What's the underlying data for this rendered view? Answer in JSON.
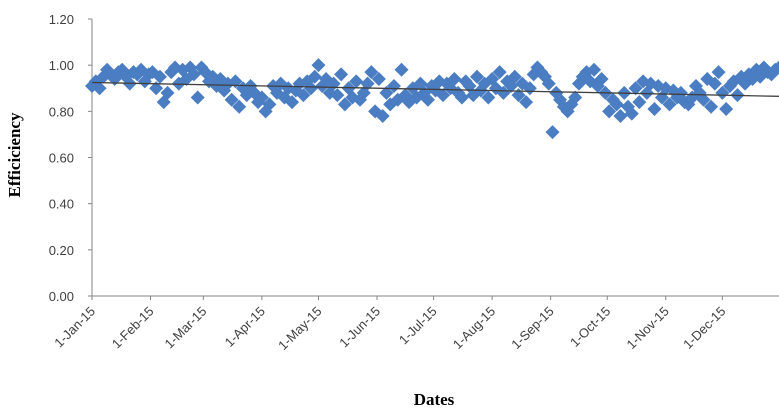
{
  "chart_data": {
    "type": "scatter",
    "title": "",
    "xlabel": "Dates",
    "ylabel": "Efficiciency",
    "x_ticks": [
      "1-Jan-15",
      "1-Feb-15",
      "1-Mar-15",
      "1-Apr-15",
      "1-May-15",
      "1-Jun-15",
      "1-Jul-15",
      "1-Aug-15",
      "1-Sep-15",
      "1-Oct-15",
      "1-Nov-15",
      "1-Dec-15"
    ],
    "y_ticks": [
      "0.00",
      "0.20",
      "0.40",
      "0.60",
      "0.80",
      "1.00",
      "1.20"
    ],
    "xlim": [
      "2015-01-01",
      "2015-12-31"
    ],
    "ylim": [
      0,
      1.2
    ],
    "grid": false,
    "legend": "none",
    "marker": "diamond",
    "marker_color": "#4a7dc2",
    "trendline": {
      "type": "linear",
      "color": "#404040",
      "start": [
        "2015-01-01",
        0.925
      ],
      "end": [
        "2015-12-31",
        0.865
      ]
    },
    "series": [
      {
        "x": [
          "2015-01-01",
          "2015-01-03",
          "2015-01-05",
          "2015-01-07",
          "2015-01-09",
          "2015-01-11",
          "2015-01-13",
          "2015-01-15",
          "2015-01-17",
          "2015-01-19",
          "2015-01-21",
          "2015-01-23",
          "2015-01-25",
          "2015-01-27",
          "2015-01-29",
          "2015-01-31",
          "2015-02-02",
          "2015-02-04",
          "2015-02-06",
          "2015-02-08",
          "2015-02-10",
          "2015-02-12",
          "2015-02-14",
          "2015-02-16",
          "2015-02-18",
          "2015-02-20",
          "2015-02-22",
          "2015-02-24",
          "2015-02-26",
          "2015-02-28",
          "2015-03-02",
          "2015-03-04",
          "2015-03-06",
          "2015-03-08",
          "2015-03-10",
          "2015-03-12",
          "2015-03-14",
          "2015-03-16",
          "2015-03-18",
          "2015-03-20",
          "2015-03-22",
          "2015-03-24",
          "2015-03-26",
          "2015-03-28",
          "2015-03-30",
          "2015-04-01",
          "2015-04-03",
          "2015-04-05",
          "2015-04-07",
          "2015-04-09",
          "2015-04-11",
          "2015-04-13",
          "2015-04-15",
          "2015-04-17",
          "2015-04-19",
          "2015-04-21",
          "2015-04-23",
          "2015-04-25",
          "2015-04-27",
          "2015-04-29",
          "2015-05-01",
          "2015-05-03",
          "2015-05-05",
          "2015-05-07",
          "2015-05-09",
          "2015-05-11",
          "2015-05-13",
          "2015-05-15",
          "2015-05-17",
          "2015-05-19",
          "2015-05-21",
          "2015-05-23",
          "2015-05-25",
          "2015-05-27",
          "2015-05-29",
          "2015-05-31",
          "2015-06-02",
          "2015-06-04",
          "2015-06-06",
          "2015-06-08",
          "2015-06-10",
          "2015-06-12",
          "2015-06-14",
          "2015-06-16",
          "2015-06-18",
          "2015-06-20",
          "2015-06-22",
          "2015-06-24",
          "2015-06-26",
          "2015-06-28",
          "2015-06-30",
          "2015-07-02",
          "2015-07-04",
          "2015-07-06",
          "2015-07-08",
          "2015-07-10",
          "2015-07-12",
          "2015-07-14",
          "2015-07-16",
          "2015-07-18",
          "2015-07-20",
          "2015-07-22",
          "2015-07-24",
          "2015-07-26",
          "2015-07-28",
          "2015-07-30",
          "2015-08-01",
          "2015-08-03",
          "2015-08-05",
          "2015-08-07",
          "2015-08-09",
          "2015-08-11",
          "2015-08-13",
          "2015-08-15",
          "2015-08-17",
          "2015-08-19",
          "2015-08-21",
          "2015-08-23",
          "2015-08-25",
          "2015-08-27",
          "2015-08-29",
          "2015-08-31",
          "2015-09-02",
          "2015-09-04",
          "2015-09-06",
          "2015-09-08",
          "2015-09-10",
          "2015-09-12",
          "2015-09-14",
          "2015-09-16",
          "2015-09-18",
          "2015-09-20",
          "2015-09-22",
          "2015-09-24",
          "2015-09-26",
          "2015-09-28",
          "2015-09-30",
          "2015-10-02",
          "2015-10-04",
          "2015-10-06",
          "2015-10-08",
          "2015-10-10",
          "2015-10-12",
          "2015-10-14",
          "2015-10-16",
          "2015-10-18",
          "2015-10-20",
          "2015-10-22",
          "2015-10-24",
          "2015-10-26",
          "2015-10-28",
          "2015-10-30",
          "2015-11-01",
          "2015-11-03",
          "2015-11-05",
          "2015-11-07",
          "2015-11-09",
          "2015-11-11",
          "2015-11-13",
          "2015-11-15",
          "2015-11-17",
          "2015-11-19",
          "2015-11-21",
          "2015-11-23",
          "2015-11-25",
          "2015-11-27",
          "2015-11-29",
          "2015-12-01",
          "2015-12-03",
          "2015-12-05",
          "2015-12-07",
          "2015-12-09",
          "2015-12-11",
          "2015-12-13",
          "2015-12-15",
          "2015-12-17",
          "2015-12-19",
          "2015-12-21",
          "2015-12-23",
          "2015-12-25",
          "2015-12-27",
          "2015-12-29",
          "2015-12-31"
        ],
        "y": [
          0.91,
          0.93,
          0.9,
          0.95,
          0.98,
          0.96,
          0.94,
          0.97,
          0.98,
          0.95,
          0.92,
          0.97,
          0.96,
          0.98,
          0.93,
          0.96,
          0.97,
          0.9,
          0.95,
          0.84,
          0.88,
          0.97,
          0.99,
          0.92,
          0.98,
          0.94,
          0.99,
          0.96,
          0.86,
          0.99,
          0.97,
          0.93,
          0.95,
          0.91,
          0.94,
          0.89,
          0.92,
          0.85,
          0.93,
          0.82,
          0.9,
          0.87,
          0.91,
          0.88,
          0.84,
          0.86,
          0.8,
          0.83,
          0.91,
          0.88,
          0.92,
          0.86,
          0.9,
          0.84,
          0.89,
          0.92,
          0.87,
          0.93,
          0.9,
          0.95,
          1.0,
          0.91,
          0.94,
          0.88,
          0.92,
          0.87,
          0.96,
          0.83,
          0.9,
          0.86,
          0.93,
          0.85,
          0.88,
          0.92,
          0.97,
          0.8,
          0.94,
          0.78,
          0.88,
          0.83,
          0.91,
          0.85,
          0.98,
          0.87,
          0.84,
          0.9,
          0.86,
          0.92,
          0.88,
          0.85,
          0.91,
          0.89,
          0.93,
          0.87,
          0.92,
          0.9,
          0.94,
          0.88,
          0.86,
          0.93,
          0.91,
          0.87,
          0.95,
          0.89,
          0.92,
          0.86,
          0.94,
          0.9,
          0.97,
          0.88,
          0.93,
          0.91,
          0.95,
          0.87,
          0.92,
          0.84,
          0.9,
          0.96,
          0.99,
          0.97,
          0.95,
          0.92,
          0.71,
          0.88,
          0.85,
          0.82,
          0.8,
          0.83,
          0.86,
          0.92,
          0.95,
          0.97,
          0.93,
          0.98,
          0.91,
          0.94,
          0.88,
          0.8,
          0.85,
          0.83,
          0.78,
          0.88,
          0.82,
          0.79,
          0.9,
          0.84,
          0.93,
          0.88,
          0.92,
          0.81,
          0.91,
          0.86,
          0.9,
          0.83,
          0.89,
          0.86,
          0.88,
          0.84,
          0.83,
          0.86,
          0.91,
          0.88,
          0.85,
          0.94,
          0.82,
          0.92,
          0.97,
          0.88,
          0.81,
          0.91,
          0.93,
          0.87,
          0.95,
          0.92,
          0.96,
          0.94,
          0.98,
          0.95,
          0.99,
          0.97,
          0.96,
          0.98,
          0.99
        ]
      }
    ]
  }
}
